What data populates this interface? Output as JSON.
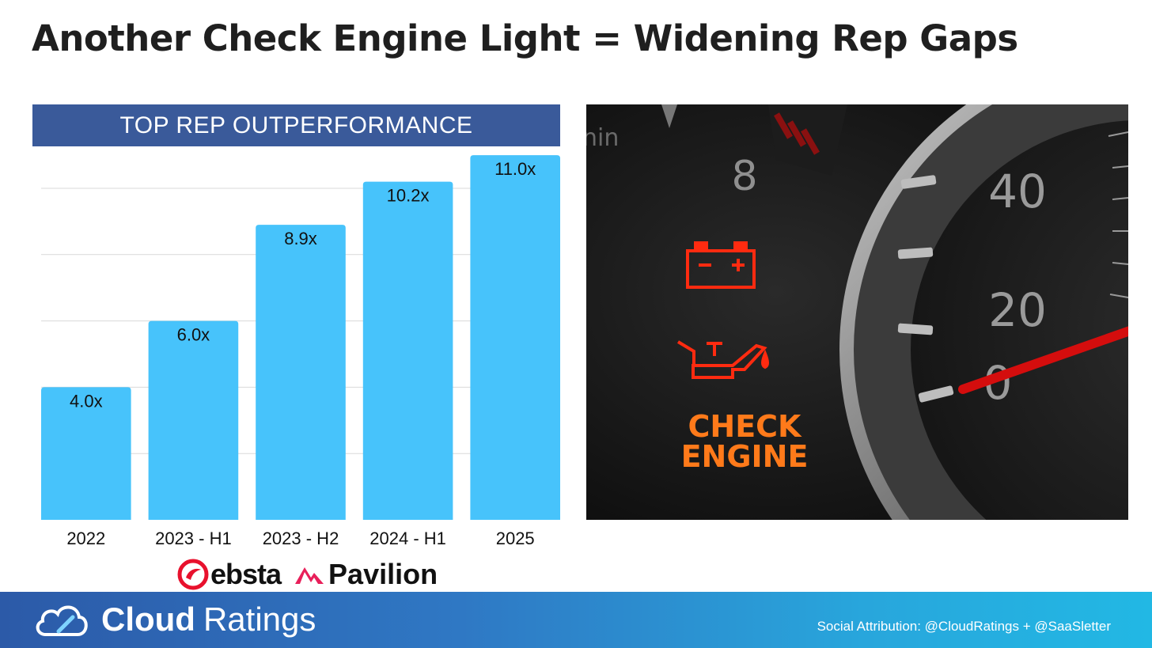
{
  "title": "Another Check Engine Light = Widening Rep Gaps",
  "chart_data": {
    "type": "bar",
    "title": "TOP REP OUTPERFORMANCE",
    "categories": [
      "2022",
      "2023 - H1",
      "2023 - H2",
      "2024 - H1",
      "2025"
    ],
    "values": [
      4.0,
      6.0,
      8.9,
      10.2,
      11.0
    ],
    "value_labels": [
      "4.0x",
      "6.0x",
      "8.9x",
      "10.2x",
      "11.0x"
    ],
    "ylim": [
      0,
      12
    ],
    "grid": true,
    "bar_color": "#47c3fb",
    "xlabel": "",
    "ylabel": ""
  },
  "logos": {
    "ebsta": "ebsta",
    "pavilion": "Pavilion"
  },
  "photo": {
    "speedo_labels": [
      "40",
      "20",
      "0"
    ],
    "tacho_labels": [
      "8"
    ],
    "partial_text": "nin",
    "warning_text": [
      "CHECK",
      "ENGINE"
    ]
  },
  "footer": {
    "brand_bold": "Cloud",
    "brand_light": "Ratings",
    "attribution": "Social Attribution: @CloudRatings + @SaaSletter"
  },
  "colors": {
    "banner": "#3a5a9a",
    "bar": "#47c3fb",
    "title_text": "#1f1f1f",
    "warning_red": "#ff2b10",
    "warning_orange": "#ff7a1a"
  }
}
